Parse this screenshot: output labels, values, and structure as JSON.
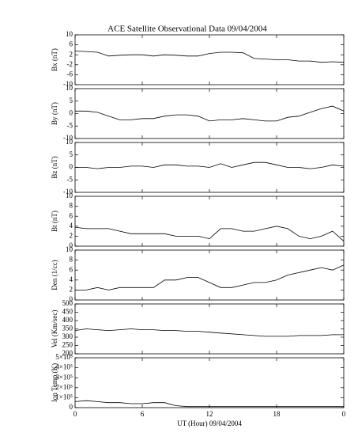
{
  "chart_data": [
    {
      "type": "line",
      "title": "ACE Satellite Observational Data   09/04/2004",
      "ylabel": "Bx (nT)",
      "color": "#000000",
      "xlim": [
        0,
        24
      ],
      "ylim": [
        -10,
        10
      ],
      "yticks": [
        -10,
        -6,
        -2,
        2,
        6,
        10
      ],
      "x": [
        0,
        1,
        2,
        3,
        4,
        5,
        6,
        7,
        8,
        9,
        10,
        11,
        12,
        13,
        14,
        15,
        16,
        17,
        18,
        19,
        20,
        21,
        22,
        23,
        24
      ],
      "values": [
        3.5,
        3.3,
        3,
        1.5,
        1.8,
        2,
        2,
        1.5,
        2,
        1.8,
        1.5,
        1.5,
        2.5,
        3,
        3,
        2.8,
        0.5,
        0.3,
        0,
        0,
        -0.5,
        -0.5,
        -1,
        -0.8,
        -1
      ]
    },
    {
      "type": "line",
      "ylabel": "By (nT)",
      "color": "#000000",
      "xlim": [
        0,
        24
      ],
      "ylim": [
        -10,
        10
      ],
      "yticks": [
        -10,
        -5,
        0,
        5,
        10
      ],
      "x": [
        0,
        1,
        2,
        3,
        4,
        5,
        6,
        7,
        8,
        9,
        10,
        11,
        12,
        13,
        14,
        15,
        16,
        17,
        18,
        19,
        20,
        21,
        22,
        23,
        24
      ],
      "values": [
        1,
        1,
        0.5,
        -1,
        -2.5,
        -2.5,
        -2,
        -2,
        -1,
        -0.5,
        -0.5,
        -1,
        -3,
        -2.5,
        -2.5,
        -2,
        -2.5,
        -3,
        -3,
        -1.5,
        -1,
        0.5,
        2,
        3,
        1
      ]
    },
    {
      "type": "line",
      "ylabel": "Bz (nT)",
      "color": "#000000",
      "xlim": [
        0,
        24
      ],
      "ylim": [
        -10,
        10
      ],
      "yticks": [
        -10,
        -5,
        0,
        5,
        10
      ],
      "x": [
        0,
        1,
        2,
        3,
        4,
        5,
        6,
        7,
        8,
        9,
        10,
        11,
        12,
        13,
        14,
        15,
        16,
        17,
        18,
        19,
        20,
        21,
        22,
        23,
        24
      ],
      "values": [
        0,
        0,
        -0.5,
        0,
        0,
        0.5,
        0.5,
        0,
        1,
        1,
        0.5,
        0.5,
        0,
        1.5,
        0,
        1,
        2,
        2,
        1,
        0,
        0,
        -0.5,
        0,
        1,
        0.5
      ]
    },
    {
      "type": "line",
      "ylabel": "Bt (nT)",
      "color": "#000000",
      "xlim": [
        0,
        24
      ],
      "ylim": [
        0,
        10
      ],
      "yticks": [
        0,
        2,
        4,
        6,
        8,
        10
      ],
      "x": [
        0,
        1,
        2,
        3,
        4,
        5,
        6,
        7,
        8,
        9,
        10,
        11,
        12,
        13,
        14,
        15,
        16,
        17,
        18,
        19,
        20,
        21,
        22,
        23,
        24
      ],
      "values": [
        3.8,
        3.5,
        3.5,
        3.5,
        3,
        2.5,
        2.5,
        2.5,
        2.5,
        2,
        2,
        2,
        1.5,
        3.5,
        3.5,
        3,
        3,
        3.5,
        4,
        3.5,
        2,
        1.5,
        2,
        3,
        1
      ]
    },
    {
      "type": "line",
      "ylabel": "Den (1/cc)",
      "color": "#000000",
      "xlim": [
        0,
        24
      ],
      "ylim": [
        0,
        10
      ],
      "yticks": [
        0,
        2,
        4,
        6,
        8,
        10
      ],
      "x": [
        0,
        1,
        2,
        3,
        4,
        5,
        6,
        7,
        8,
        9,
        10,
        11,
        12,
        13,
        14,
        15,
        16,
        17,
        18,
        19,
        20,
        21,
        22,
        23,
        24
      ],
      "values": [
        2,
        2,
        2.5,
        2,
        2.5,
        2.5,
        2.5,
        2.5,
        4,
        4,
        4.5,
        4.5,
        3.5,
        2.5,
        2.5,
        3,
        3.5,
        3.5,
        4,
        5,
        5.5,
        6,
        6.5,
        6,
        7
      ]
    },
    {
      "type": "line",
      "ylabel": "Vel (Km/sec)",
      "color": "#000000",
      "xlim": [
        0,
        24
      ],
      "ylim": [
        200,
        500
      ],
      "yticks": [
        200,
        250,
        300,
        350,
        400,
        450,
        500
      ],
      "x": [
        0,
        1,
        2,
        3,
        4,
        5,
        6,
        7,
        8,
        9,
        10,
        11,
        12,
        13,
        14,
        15,
        16,
        17,
        18,
        19,
        20,
        21,
        22,
        23,
        24
      ],
      "values": [
        340,
        350,
        345,
        340,
        345,
        350,
        345,
        345,
        340,
        340,
        335,
        335,
        330,
        325,
        320,
        315,
        310,
        305,
        305,
        305,
        310,
        310,
        310,
        315,
        315
      ]
    },
    {
      "type": "line",
      "ylabel": "Ion Temp (K)",
      "xlabel": "UT (Hour)   09/04/2004",
      "color": "#000000",
      "xlim": [
        0,
        24
      ],
      "ylim": [
        0,
        500000
      ],
      "yticks": [
        0,
        {
          "value": 100000,
          "label": "1×10⁵"
        },
        {
          "value": 200000,
          "label": "2×10⁵"
        },
        {
          "value": 300000,
          "label": "3×10⁵"
        },
        {
          "value": 400000,
          "label": "4×10⁵"
        },
        {
          "value": 500000,
          "label": "5×10⁵"
        }
      ],
      "xticks": [
        0,
        6,
        12,
        18,
        {
          "value": 24,
          "label": "0"
        }
      ],
      "x": [
        0,
        1,
        2,
        3,
        4,
        5,
        6,
        7,
        8,
        9,
        10,
        11,
        12,
        13,
        14,
        15,
        16,
        17,
        18,
        19,
        20,
        21,
        22,
        23,
        24
      ],
      "values": [
        60000,
        70000,
        60000,
        50000,
        50000,
        40000,
        40000,
        50000,
        50000,
        20000,
        10000,
        10000,
        10000,
        10000,
        10000,
        10000,
        10000,
        10000,
        10000,
        10000,
        10000,
        10000,
        10000,
        10000,
        10000
      ]
    }
  ]
}
